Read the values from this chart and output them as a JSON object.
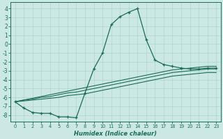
{
  "xlabel": "Humidex (Indice chaleur)",
  "bg_color": "#cce8e4",
  "line_color": "#1a6b5a",
  "grid_color": "#afd4ce",
  "xlim": [
    -0.5,
    23.5
  ],
  "ylim": [
    -8.7,
    4.7
  ],
  "xticks": [
    0,
    1,
    2,
    3,
    4,
    5,
    6,
    7,
    8,
    9,
    10,
    11,
    12,
    13,
    14,
    15,
    16,
    17,
    18,
    19,
    20,
    21,
    22,
    23
  ],
  "yticks": [
    -8,
    -7,
    -6,
    -5,
    -4,
    -3,
    -2,
    -1,
    0,
    1,
    2,
    3,
    4
  ],
  "main_curve": [
    -6.5,
    -7.2,
    -7.7,
    -7.8,
    -7.8,
    -8.2,
    -8.2,
    -8.3,
    -5.5,
    -2.8,
    -1.0,
    2.2,
    3.1,
    3.6,
    4.0,
    0.5,
    -1.8,
    -2.3,
    -2.5,
    -2.7,
    -2.8,
    -2.8,
    -2.7,
    -2.7
  ],
  "trend_lines": [
    [
      -6.5,
      -6.3,
      -6.1,
      -5.9,
      -5.7,
      -5.5,
      -5.3,
      -5.1,
      -4.9,
      -4.7,
      -4.5,
      -4.3,
      -4.1,
      -3.9,
      -3.7,
      -3.5,
      -3.3,
      -3.1,
      -2.9,
      -2.8,
      -2.7,
      -2.6,
      -2.5,
      -2.5
    ],
    [
      -6.5,
      -6.3,
      -6.2,
      -6.0,
      -5.9,
      -5.7,
      -5.5,
      -5.4,
      -5.2,
      -5.0,
      -4.8,
      -4.6,
      -4.4,
      -4.2,
      -4.0,
      -3.8,
      -3.6,
      -3.4,
      -3.2,
      -3.1,
      -3.0,
      -2.9,
      -2.8,
      -2.8
    ],
    [
      -6.5,
      -6.4,
      -6.3,
      -6.2,
      -6.1,
      -6.0,
      -5.8,
      -5.7,
      -5.6,
      -5.4,
      -5.2,
      -5.0,
      -4.8,
      -4.6,
      -4.4,
      -4.2,
      -4.0,
      -3.8,
      -3.6,
      -3.5,
      -3.4,
      -3.3,
      -3.2,
      -3.2
    ]
  ]
}
